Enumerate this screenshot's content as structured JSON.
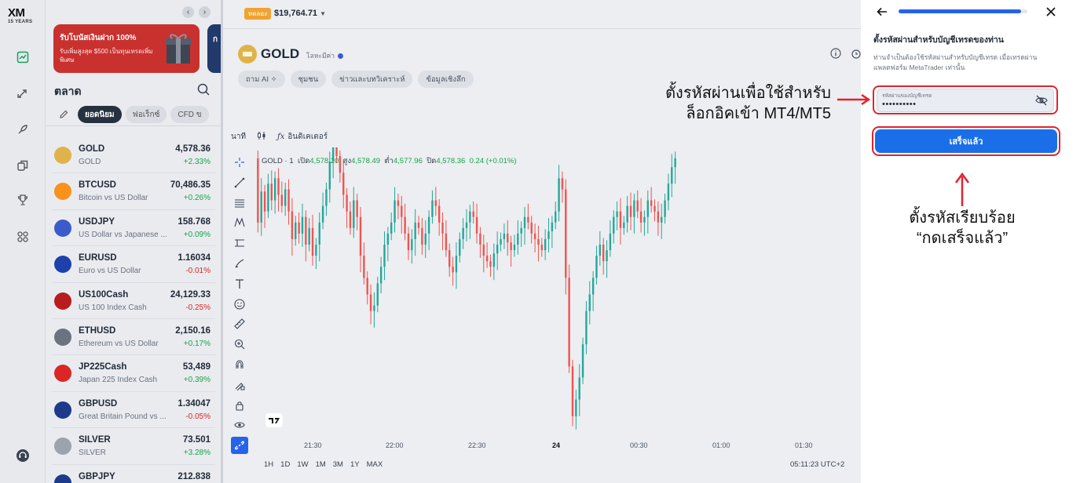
{
  "brand": {
    "logo_text": "XM",
    "logo_sub": "15 YEARS"
  },
  "rail": {
    "icons": [
      "chart-icon",
      "swap-arrows-icon",
      "rocket-icon",
      "copy-icon",
      "trophy-icon",
      "apps-grid-icon",
      "support-headset-icon"
    ]
  },
  "promo": {
    "title": "รับโบนัสเงินฝาก 100%",
    "subtitle": "รับเพิ่มสูงสุด $500 เป็นทุนเทรดเพิ่มพิเศษ",
    "second_card_initial": "ก"
  },
  "market": {
    "title": "ตลาด",
    "tabs": [
      "ยอดนิยม",
      "ฟอเร็กซ์",
      "CFD ข"
    ],
    "active_tab": 0,
    "instruments": [
      {
        "symbol": "GOLD",
        "desc": "GOLD",
        "price": "4,578.36",
        "change": "+2.33%",
        "dir": "up",
        "icon": "gold-bar-icon",
        "icon_color": "#e0b34a"
      },
      {
        "symbol": "BTCUSD",
        "desc": "Bitcoin vs US Dollar",
        "price": "70,486.35",
        "change": "+0.26%",
        "dir": "up",
        "icon": "bitcoin-icon",
        "icon_color": "#f7931a"
      },
      {
        "symbol": "USDJPY",
        "desc": "US Dollar vs Japanese ...",
        "price": "158.768",
        "change": "+0.09%",
        "dir": "up",
        "icon": "usd-jpy-flags-icon",
        "icon_color": "#3b5bcc"
      },
      {
        "symbol": "EURUSD",
        "desc": "Euro vs US Dollar",
        "price": "1.16034",
        "change": "-0.01%",
        "dir": "down",
        "icon": "eur-usd-flags-icon",
        "icon_color": "#1e40af"
      },
      {
        "symbol": "US100Cash",
        "desc": "US 100 Index Cash",
        "price": "24,129.33",
        "change": "-0.25%",
        "dir": "down",
        "icon": "us-flag-icon",
        "icon_color": "#b91c1c"
      },
      {
        "symbol": "ETHUSD",
        "desc": "Ethereum vs US Dollar",
        "price": "2,150.16",
        "change": "+0.17%",
        "dir": "up",
        "icon": "ethereum-icon",
        "icon_color": "#6b7280"
      },
      {
        "symbol": "JP225Cash",
        "desc": "Japan 225 Index Cash",
        "price": "53,489",
        "change": "+0.39%",
        "dir": "up",
        "icon": "japan-flag-icon",
        "icon_color": "#dc2626"
      },
      {
        "symbol": "GBPUSD",
        "desc": "Great Britain Pound vs ...",
        "price": "1.34047",
        "change": "-0.05%",
        "dir": "down",
        "icon": "gbp-usd-flags-icon",
        "icon_color": "#1e3a8a"
      },
      {
        "symbol": "SILVER",
        "desc": "SILVER",
        "price": "73.501",
        "change": "+3.28%",
        "dir": "up",
        "icon": "silver-bar-icon",
        "icon_color": "#9ca3af"
      },
      {
        "symbol": "GBPJPY",
        "desc": "",
        "price": "212.838",
        "change": "",
        "dir": "up",
        "icon": "gbp-jpy-flags-icon",
        "icon_color": "#1e3a8a"
      }
    ]
  },
  "topbar": {
    "account_badge": "ทดลอง",
    "balance": "$19,764.71"
  },
  "instrument": {
    "name": "GOLD",
    "subtitle": "โลหะมีค่า"
  },
  "pills": [
    "ถาม AI ✧",
    "ชุมชน",
    "ข่าวและบทวิเคราะห์",
    "ข้อมูลเชิงลึก"
  ],
  "tv": {
    "interval": "นาที",
    "indicators_label": "อินดิเคเตอร์",
    "ohlc_prefix": "GOLD · 1",
    "open_label": "เปิด",
    "open": "4,578.20",
    "high_label": "สูง",
    "high": "4,578.49",
    "low_label": "ต่ำ",
    "low": "4,577.96",
    "close_label": "ปิด",
    "close": "4,578.36",
    "change": "0.24 (+0.01%)",
    "time_labels": [
      "21:30",
      "22:00",
      "22:30",
      "24",
      "00:30",
      "01:00",
      "01:30"
    ],
    "ranges": [
      "1H",
      "1D",
      "1W",
      "1M",
      "3M",
      "1Y",
      "MAX"
    ],
    "clock": "05:11:23 UTC+2",
    "up_color": "#26a69a",
    "down_color": "#ef5350"
  },
  "chart_data": {
    "type": "candlestick",
    "close_series": [
      4578,
      4520,
      4548,
      4530,
      4555,
      4540,
      4560,
      4545,
      4535,
      4550,
      4530,
      4505,
      4520,
      4510,
      4525,
      4500,
      4515,
      4490,
      4500,
      4520,
      4535,
      4550,
      4575,
      4590,
      4580,
      4565,
      4545,
      4530,
      4515,
      4540,
      4525,
      4490,
      4470,
      4455,
      4440,
      4445,
      4465,
      4480,
      4500,
      4510,
      4520,
      4540,
      4535,
      4525,
      4510,
      4495,
      4505,
      4520,
      4515,
      4500,
      4510,
      4525,
      4540,
      4535,
      4520,
      4510,
      4495,
      4480,
      4475,
      4490,
      4505,
      4515,
      4520,
      4530,
      4525,
      4510,
      4500,
      4490,
      4485,
      4480,
      4492,
      4500,
      4505,
      4510,
      4502,
      4495,
      4500,
      4510,
      4515,
      4525,
      4520,
      4510,
      4505,
      4500,
      4495,
      4505,
      4512,
      4520,
      4530,
      4560,
      4550,
      4470,
      4390,
      4345,
      4360,
      4380,
      4410,
      4440,
      4455,
      4470,
      4490,
      4500,
      4485,
      4495,
      4510,
      4525,
      4530,
      4515,
      4520,
      4535,
      4525,
      4540,
      4530,
      4520,
      4525,
      4540,
      4535,
      4530,
      4520,
      4525,
      4540,
      4555,
      4570,
      4578
    ],
    "y_min": 4330,
    "y_max": 4585
  },
  "sheet": {
    "title": "ตั้งรหัสผ่านสำหรับบัญชีเทรดของท่าน",
    "description": "ท่านจำเป็นต้องใช้รหัสผ่านสำหรับบัญชีเทรด เมื่อเทรดผ่านแพลตฟอร์ม MetaTrader เท่านั้น",
    "password_label": "รหัสผ่านของบัญชีเทรด",
    "password_value": "••••••••••",
    "done_button": "เสร็จแล้ว",
    "progress": 0.95
  },
  "annotations": {
    "note1_line1": "ตั้งรหัสผ่านเพื่อใช้สำหรับ",
    "note1_line2": "ล็อกอิคเข้า MT4/MT5",
    "note2_line1": "ตั้งรหัสเรียบร้อย",
    "note2_line2": "“กดเสร็จแล้ว”",
    "highlight_color": "#e0242e"
  }
}
